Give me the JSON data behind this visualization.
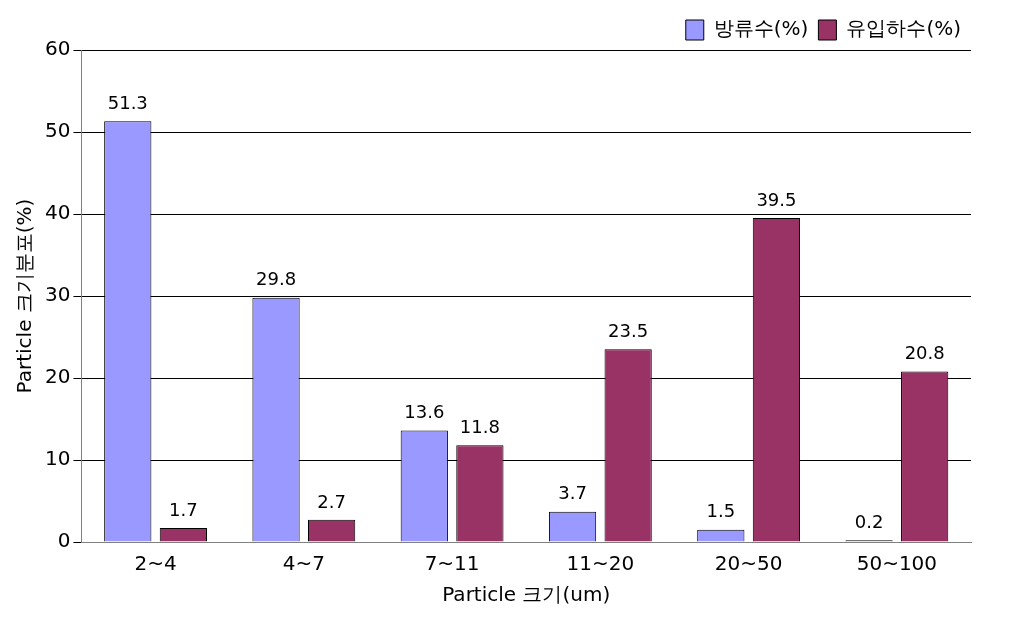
{
  "chart_data": {
    "type": "bar",
    "xlabel": "Particle 크기(um)",
    "ylabel": "Particle 크기분포(%)",
    "categories": [
      "2~4",
      "4~7",
      "7~11",
      "11~20",
      "20~50",
      "50~100"
    ],
    "series": [
      {
        "name": "방류수(%)",
        "color": "#9999ff",
        "values": [
          51.3,
          29.8,
          13.6,
          3.7,
          1.5,
          0.2
        ]
      },
      {
        "name": "유입하수(%)",
        "color": "#993366",
        "values": [
          1.7,
          2.7,
          11.8,
          23.5,
          39.5,
          20.8
        ]
      }
    ],
    "ylim": [
      0,
      60
    ],
    "yticks": [
      0,
      10,
      20,
      30,
      40,
      50,
      60
    ],
    "grid": "y",
    "legend": "top right",
    "data_labels": true
  }
}
